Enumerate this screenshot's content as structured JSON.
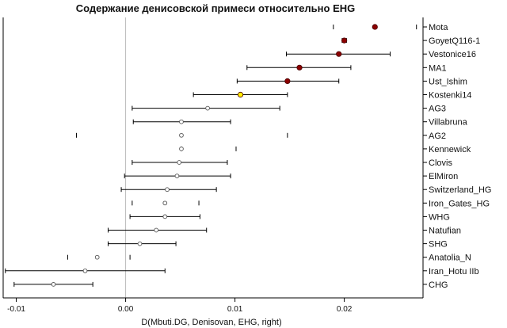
{
  "chart_data": {
    "type": "scatter",
    "title": "Содержание денисовской примеси относительно EHG",
    "xlabel": "D(Mbuti.DG, Denisovan, EHG, right)",
    "ylabel": "",
    "xlim": [
      -0.0112,
      0.0272
    ],
    "xticks": [
      -0.01,
      0.0,
      0.01,
      0.02
    ],
    "xtick_labels": [
      "-0.01",
      "0.00",
      "0.01",
      "0.02"
    ],
    "reference_line": 0.0,
    "grid": false,
    "colors": {
      "significant": "#8b0000",
      "intermediate": "#ffee00",
      "nonsignificant": "#ffffff",
      "axis": "#000000",
      "zero_line": "#bbbbbb"
    },
    "series": [
      {
        "label": "Mota",
        "value": 0.0228,
        "ci": [
          0.019,
          0.0266
        ],
        "errorbar": false,
        "color": "#8b0000"
      },
      {
        "label": "GoyetQ116-1",
        "value": 0.02,
        "ci": [
          0.0198,
          0.0202
        ],
        "errorbar": false,
        "color": "#8b0000"
      },
      {
        "label": "Vestonice16",
        "value": 0.0195,
        "ci": [
          0.0147,
          0.0242
        ],
        "errorbar": true,
        "color": "#8b0000"
      },
      {
        "label": "MA1",
        "value": 0.0159,
        "ci": [
          0.0111,
          0.0206
        ],
        "errorbar": true,
        "color": "#8b0000"
      },
      {
        "label": "Ust_Ishim",
        "value": 0.0148,
        "ci": [
          0.0102,
          0.0195
        ],
        "errorbar": true,
        "color": "#8b0000"
      },
      {
        "label": "Kostenki14",
        "value": 0.0105,
        "ci": [
          0.0062,
          0.0148
        ],
        "errorbar": true,
        "color": "#ffee00"
      },
      {
        "label": "AG3",
        "value": 0.0075,
        "ci": [
          0.0006,
          0.0141
        ],
        "errorbar": true,
        "color": "#ffffff"
      },
      {
        "label": "Villabruna",
        "value": 0.0051,
        "ci": [
          0.0007,
          0.0096
        ],
        "errorbar": true,
        "color": "#ffffff"
      },
      {
        "label": "AG2",
        "value": 0.0051,
        "ci": [
          -0.0045,
          0.0148
        ],
        "errorbar": false,
        "color": "#ffffff"
      },
      {
        "label": "Kennewick",
        "value": 0.0051,
        "ci": [
          0.0051,
          0.0101
        ],
        "errorbar": false,
        "color": "#ffffff"
      },
      {
        "label": "Clovis",
        "value": 0.0049,
        "ci": [
          0.0006,
          0.0093
        ],
        "errorbar": true,
        "color": "#ffffff"
      },
      {
        "label": "ElMiron",
        "value": 0.0047,
        "ci": [
          -0.0001,
          0.0096
        ],
        "errorbar": true,
        "color": "#ffffff"
      },
      {
        "label": "Switzerland_HG",
        "value": 0.0038,
        "ci": [
          -0.0004,
          0.0083
        ],
        "errorbar": true,
        "color": "#ffffff"
      },
      {
        "label": "Iron_Gates_HG",
        "value": 0.0036,
        "ci": [
          0.0006,
          0.0067
        ],
        "errorbar": false,
        "color": "#ffffff"
      },
      {
        "label": "WHG",
        "value": 0.0036,
        "ci": [
          0.0004,
          0.0068
        ],
        "errorbar": true,
        "color": "#ffffff"
      },
      {
        "label": "Natufian",
        "value": 0.0028,
        "ci": [
          -0.0016,
          0.0074
        ],
        "errorbar": true,
        "color": "#ffffff"
      },
      {
        "label": "SHG",
        "value": 0.0013,
        "ci": [
          -0.0016,
          0.0046
        ],
        "errorbar": true,
        "color": "#ffffff"
      },
      {
        "label": "Anatolia_N",
        "value": -0.0026,
        "ci": [
          -0.0053,
          0.0004
        ],
        "errorbar": false,
        "color": "#ffffff"
      },
      {
        "label": "Iran_Hotu IIb",
        "value": -0.0037,
        "ci": [
          -0.011,
          0.0036
        ],
        "errorbar": true,
        "color": "#ffffff"
      },
      {
        "label": "CHG",
        "value": -0.0066,
        "ci": [
          -0.0102,
          -0.003
        ],
        "errorbar": true,
        "color": "#ffffff"
      }
    ]
  }
}
